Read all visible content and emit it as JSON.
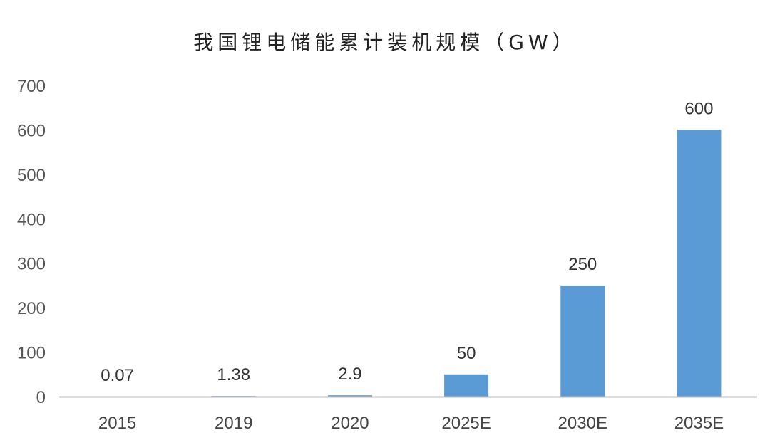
{
  "chart_data": {
    "type": "bar",
    "title": "我国锂电储能累计装机规模（GW）",
    "categories": [
      "2015",
      "2019",
      "2020",
      "2025E",
      "2030E",
      "2035E"
    ],
    "values": [
      0.07,
      1.38,
      2.9,
      50,
      250,
      600
    ],
    "data_labels": [
      "0.07",
      "1.38",
      "2.9",
      "50",
      "250",
      "600"
    ],
    "ylim": [
      0,
      700
    ],
    "yticks": [
      0,
      100,
      200,
      300,
      400,
      500,
      600,
      700
    ],
    "grid": false,
    "legend": "none",
    "bar_color": "#5b9bd5",
    "axis_color": "#bfbfbf"
  }
}
